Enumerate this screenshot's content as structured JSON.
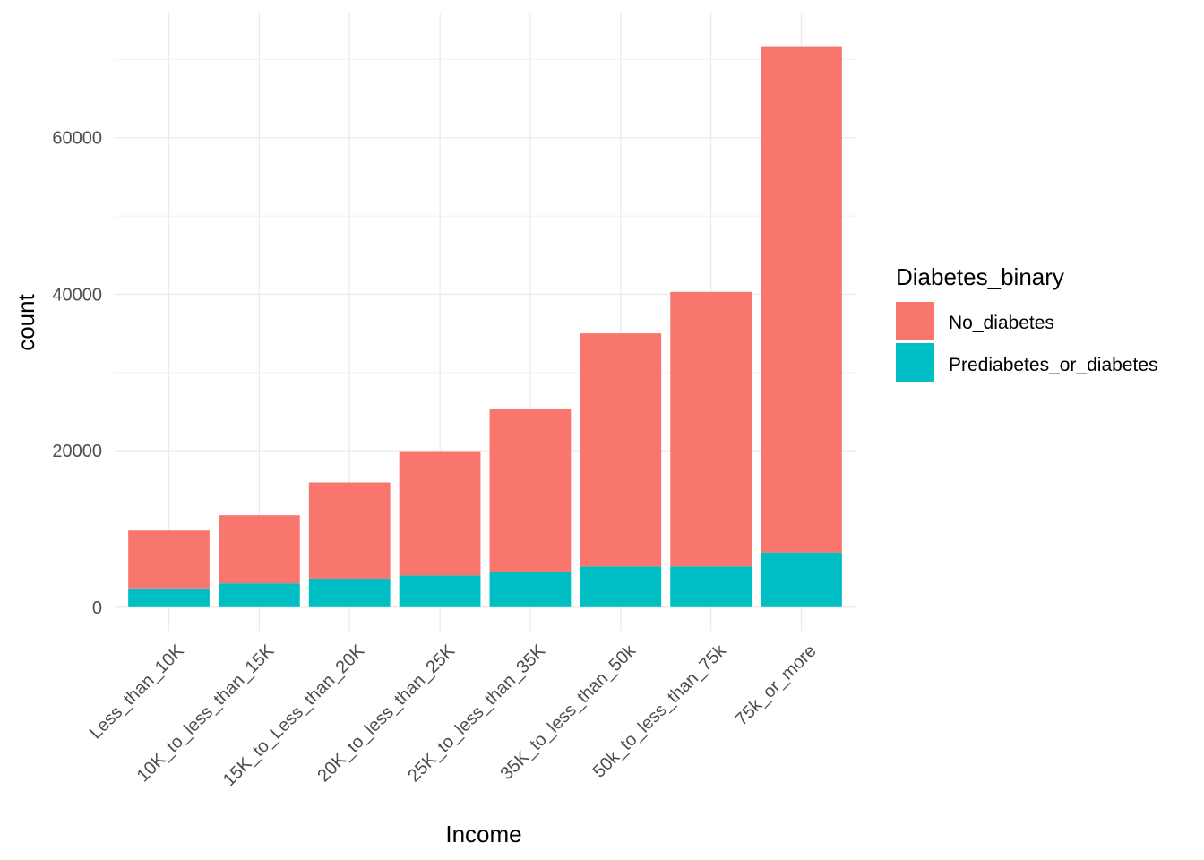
{
  "chart_data": {
    "type": "bar",
    "stacked": true,
    "categories": [
      "Less_than_10K",
      "10K_to_less_than_15K",
      "15K_to_Less_than_20K",
      "20K_to_less_than_25K",
      "25K_to_less_than_35K",
      "35K_to_less_than_50k",
      "50k_to_less_than_75k",
      "75k_or_more"
    ],
    "series": [
      {
        "name": "No_diabetes",
        "color": "#F8766D",
        "values": [
          7400,
          8700,
          12300,
          15900,
          20900,
          29800,
          35100,
          64700
        ]
      },
      {
        "name": "Prediabetes_or_diabetes",
        "color": "#00BFC4",
        "values": [
          2400,
          3050,
          3650,
          4050,
          4500,
          5200,
          5200,
          7000
        ]
      }
    ],
    "title": "",
    "xlabel": "Income",
    "ylabel": "count",
    "ylim": [
      -3000,
      76000
    ],
    "yticks": [
      0,
      20000,
      40000,
      60000
    ],
    "ytick_labels": [
      "0",
      "20000",
      "40000",
      "60000"
    ],
    "y_minor_ticks": [
      10000,
      30000,
      50000,
      70000
    ],
    "grid": true,
    "legend": {
      "title": "Diabetes_binary",
      "position": "right"
    }
  }
}
